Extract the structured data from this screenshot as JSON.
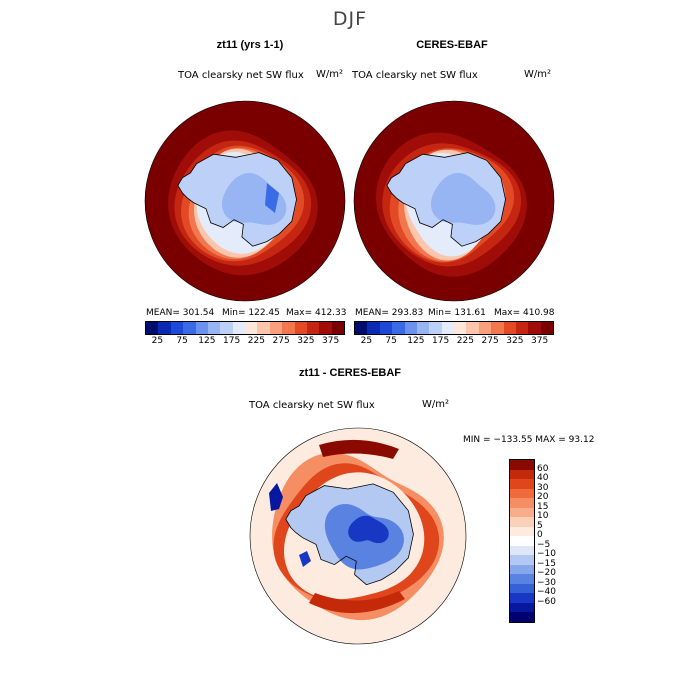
{
  "figure": {
    "season": "DJF",
    "panel1": {
      "title": "zt11 (yrs 1-1)",
      "variable": "TOA clearsky net SW flux",
      "units": "W/m²",
      "mean": "MEAN= 301.54",
      "min": "Min= 122.45",
      "max": "Max= 412.33"
    },
    "panel2": {
      "title": "CERES-EBAF",
      "variable": "TOA clearsky net SW flux",
      "units": "W/m²",
      "mean": "MEAN= 293.83",
      "min": "Min= 131.61",
      "max": "Max= 410.98"
    },
    "panel3": {
      "title": "zt11 - CERES-EBAF",
      "variable": "TOA clearsky net SW flux",
      "units": "W/m²",
      "minmax": "MIN = −133.55 MAX =  93.12"
    }
  },
  "chart_data": [
    {
      "type": "heatmap",
      "projection": "south-polar-stereographic",
      "title": "zt11 (yrs 1-1)",
      "variable": "TOA clearsky net SW flux",
      "units": "W/m²",
      "stats": {
        "mean": 301.54,
        "min": 122.45,
        "max": 412.33
      },
      "colorbar_levels": [
        25,
        50,
        75,
        100,
        125,
        150,
        175,
        200,
        225,
        250,
        275,
        300,
        325,
        350,
        375
      ],
      "colorbar_tick_labels": [
        "25",
        "75",
        "125",
        "175",
        "225",
        "275",
        "325",
        "375"
      ],
      "colors": [
        "#000e6e",
        "#0b2bb2",
        "#1d48d8",
        "#3a6be6",
        "#6b93ee",
        "#97b4f3",
        "#bdd0f7",
        "#e4ecfb",
        "#fde6da",
        "#fbc6ab",
        "#f8a07c",
        "#f2774f",
        "#e24a26",
        "#c42612",
        "#a00c07",
        "#7a0000"
      ]
    },
    {
      "type": "heatmap",
      "projection": "south-polar-stereographic",
      "title": "CERES-EBAF",
      "variable": "TOA clearsky net SW flux",
      "units": "W/m²",
      "stats": {
        "mean": 293.83,
        "min": 131.61,
        "max": 410.98
      },
      "colorbar_levels": [
        25,
        50,
        75,
        100,
        125,
        150,
        175,
        200,
        225,
        250,
        275,
        300,
        325,
        350,
        375
      ],
      "colorbar_tick_labels": [
        "25",
        "75",
        "125",
        "175",
        "225",
        "275",
        "325",
        "375"
      ],
      "colors": [
        "#000e6e",
        "#0b2bb2",
        "#1d48d8",
        "#3a6be6",
        "#6b93ee",
        "#97b4f3",
        "#bdd0f7",
        "#e4ecfb",
        "#fde6da",
        "#fbc6ab",
        "#f8a07c",
        "#f2774f",
        "#e24a26",
        "#c42612",
        "#a00c07",
        "#7a0000"
      ]
    },
    {
      "type": "heatmap",
      "projection": "south-polar-stereographic",
      "title": "zt11 - CERES-EBAF",
      "variable": "TOA clearsky net SW flux",
      "units": "W/m²",
      "stats": {
        "min": -133.55,
        "max": 93.12
      },
      "colorbar_levels": [
        60,
        40,
        30,
        20,
        15,
        10,
        5,
        0,
        -5,
        -10,
        -15,
        -20,
        -30,
        -40,
        -60
      ],
      "colorbar_tick_labels": [
        "60",
        "40",
        "30",
        "20",
        "15",
        "10",
        "5",
        "0",
        "−5",
        "−10",
        "−15",
        "−20",
        "−30",
        "−40",
        "−60"
      ],
      "colors": [
        "#8a0a00",
        "#c42a0a",
        "#e0461c",
        "#f06a3c",
        "#f58e62",
        "#f8ad8a",
        "#fbd0b8",
        "#fdebe0",
        "#ffffff",
        "#dde7f8",
        "#b4c9f2",
        "#86a7ea",
        "#5a82e0",
        "#3561d6",
        "#1838c4",
        "#0718a0",
        "#00006e"
      ]
    }
  ]
}
